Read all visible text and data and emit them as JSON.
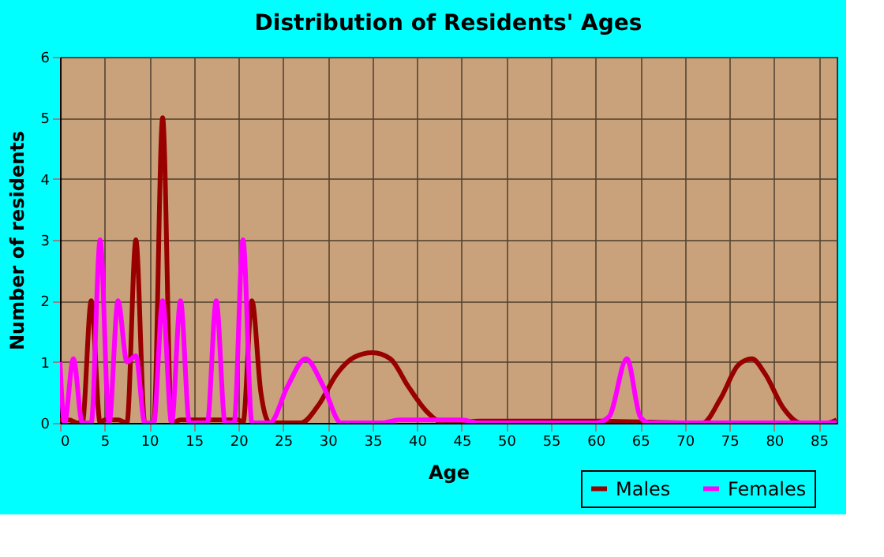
{
  "chart_data": {
    "type": "line",
    "title": "Distribution of Residents' Ages",
    "xlabel": "Age",
    "ylabel": "Number of residents",
    "xlim": [
      0,
      87
    ],
    "xticks": [
      0,
      5,
      10,
      15,
      20,
      25,
      30,
      35,
      40,
      45,
      50,
      55,
      60,
      65,
      70,
      75,
      80,
      85
    ],
    "ylim": [
      0,
      6
    ],
    "yticks": [
      0,
      1,
      2,
      3,
      4,
      5,
      6
    ],
    "grid": true,
    "legend": "bottom right",
    "marker": "none",
    "line_style": "solid",
    "series": [
      {
        "name": "Males",
        "color": "#990000",
        "x": [
          0,
          1,
          2,
          2.5,
          3.5,
          4.5,
          5,
          6.5,
          7.5,
          8.5,
          9.5,
          10.5,
          11.5,
          12.5,
          13.5,
          20,
          20.5,
          21.5,
          22.5,
          23.5,
          27,
          29,
          31,
          33,
          35,
          37,
          39,
          41,
          43,
          47,
          60,
          70,
          72,
          74,
          76,
          77.5,
          79,
          81,
          83,
          86,
          87
        ],
        "values": [
          0.05,
          0.05,
          0,
          0,
          2,
          0,
          0.05,
          0.05,
          0,
          3,
          0,
          0,
          5,
          0,
          0.05,
          0.05,
          0,
          2,
          0.5,
          0,
          0,
          0.3,
          0.8,
          1.08,
          1.15,
          1.05,
          0.6,
          0.2,
          0,
          0.03,
          0.03,
          0,
          0,
          0.4,
          0.95,
          1.05,
          0.8,
          0.25,
          0,
          0,
          0.05
        ]
      },
      {
        "name": "Females",
        "color": "#ff00ff",
        "x": [
          0,
          0.5,
          1.5,
          2.5,
          3.5,
          4.5,
          5.5,
          6.5,
          7.5,
          8.5,
          9.5,
          10.5,
          11.5,
          12.5,
          13.5,
          14.5,
          16.5,
          17.5,
          18.5,
          19.5,
          20.5,
          21.5,
          23.5,
          25.5,
          27.5,
          29.5,
          31.5,
          36,
          38,
          45,
          47,
          60,
          61.5,
          63.5,
          65,
          66,
          87
        ],
        "values": [
          1,
          0,
          1.05,
          0,
          0,
          3,
          0,
          2,
          1,
          1.1,
          0,
          0,
          2,
          0,
          2,
          0,
          0,
          2,
          0,
          0,
          3,
          0,
          0,
          0.6,
          1.05,
          0.6,
          0,
          0,
          0.05,
          0.05,
          0,
          0,
          0.1,
          1.05,
          0.1,
          0,
          0
        ]
      }
    ]
  }
}
